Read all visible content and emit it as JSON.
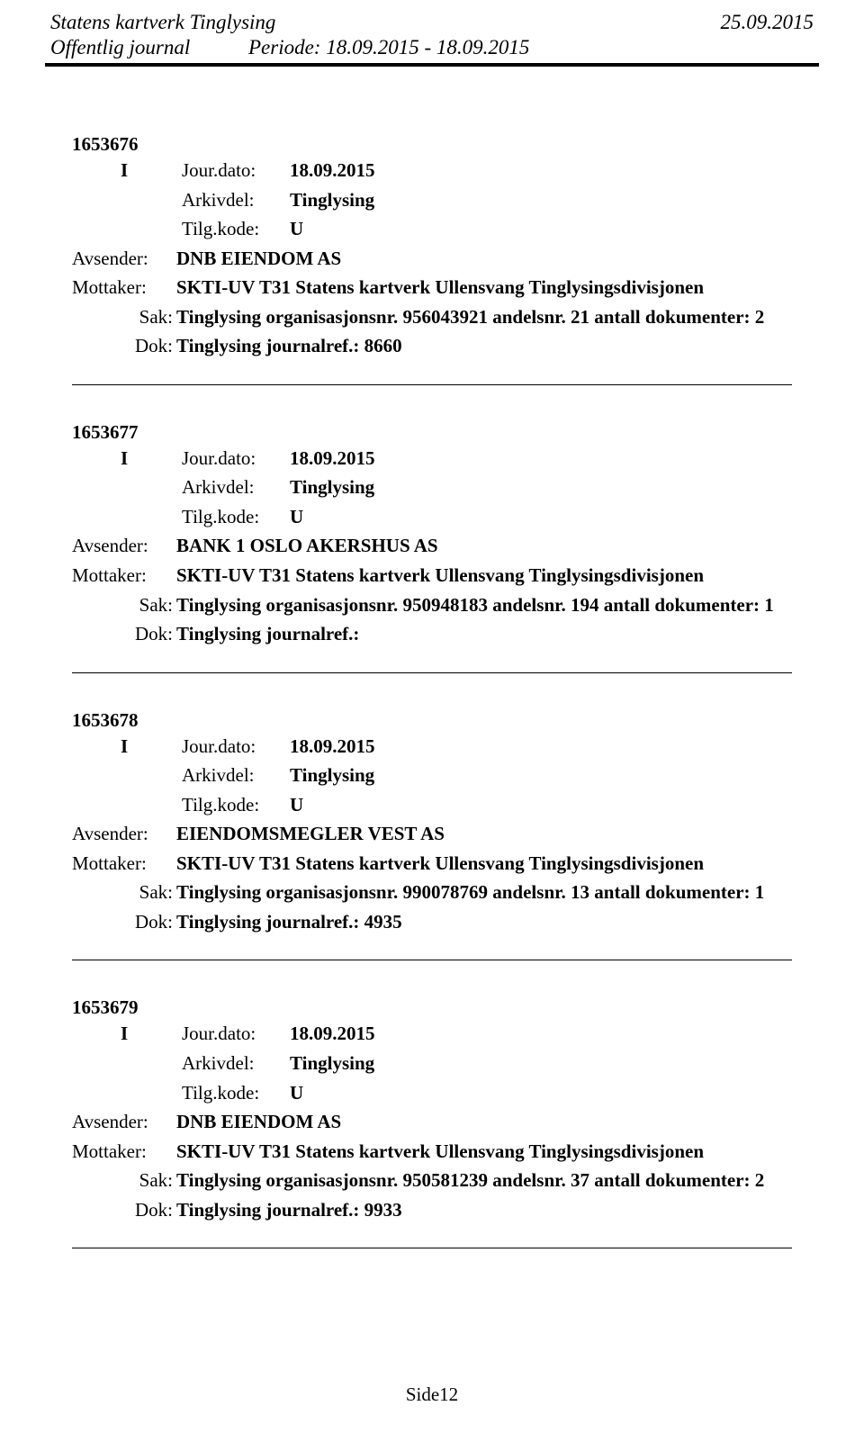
{
  "header": {
    "org": "Statens kartverk Tinglysing",
    "date": "25.09.2015",
    "journal_label": "Offentlig journal",
    "period_label": "Periode:",
    "period_value": "18.09.2015 - 18.09.2015"
  },
  "footer": {
    "page": "Side12"
  },
  "labels": {
    "jour": "Jour.dato:",
    "arkivdel": "Arkivdel:",
    "tilgkode": "Tilg.kode:",
    "avsender": "Avsender:",
    "mottaker": "Mottaker:",
    "sak": "Sak:",
    "dok": "Dok:"
  },
  "entries": [
    {
      "id": "1653676",
      "direction": "I",
      "jour_dato": "18.09.2015",
      "arkivdel": "Tinglysing",
      "tilgkode": "U",
      "avsender": "DNB EIENDOM AS",
      "mottaker": "SKTI-UV T31 Statens kartverk Ullensvang Tinglysingsdivisjonen",
      "sak": "Tinglysing organisasjonsnr. 956043921 andelsnr. 21 antall dokumenter: 2",
      "dok": "Tinglysing journalref.: 8660"
    },
    {
      "id": "1653677",
      "direction": "I",
      "jour_dato": "18.09.2015",
      "arkivdel": "Tinglysing",
      "tilgkode": "U",
      "avsender": "BANK 1 OSLO AKERSHUS AS",
      "mottaker": "SKTI-UV T31 Statens kartverk Ullensvang Tinglysingsdivisjonen",
      "sak": "Tinglysing organisasjonsnr. 950948183 andelsnr. 194 antall dokumenter: 1",
      "dok": "Tinglysing journalref.:"
    },
    {
      "id": "1653678",
      "direction": "I",
      "jour_dato": "18.09.2015",
      "arkivdel": "Tinglysing",
      "tilgkode": "U",
      "avsender": "EIENDOMSMEGLER VEST AS",
      "mottaker": "SKTI-UV T31 Statens kartverk Ullensvang Tinglysingsdivisjonen",
      "sak": "Tinglysing organisasjonsnr. 990078769 andelsnr. 13 antall dokumenter: 1",
      "dok": "Tinglysing journalref.: 4935"
    },
    {
      "id": "1653679",
      "direction": "I",
      "jour_dato": "18.09.2015",
      "arkivdel": "Tinglysing",
      "tilgkode": "U",
      "avsender": "DNB EIENDOM AS",
      "mottaker": "SKTI-UV T31 Statens kartverk Ullensvang Tinglysingsdivisjonen",
      "sak": "Tinglysing organisasjonsnr. 950581239 andelsnr. 37 antall dokumenter: 2",
      "dok": "Tinglysing journalref.: 9933"
    }
  ]
}
